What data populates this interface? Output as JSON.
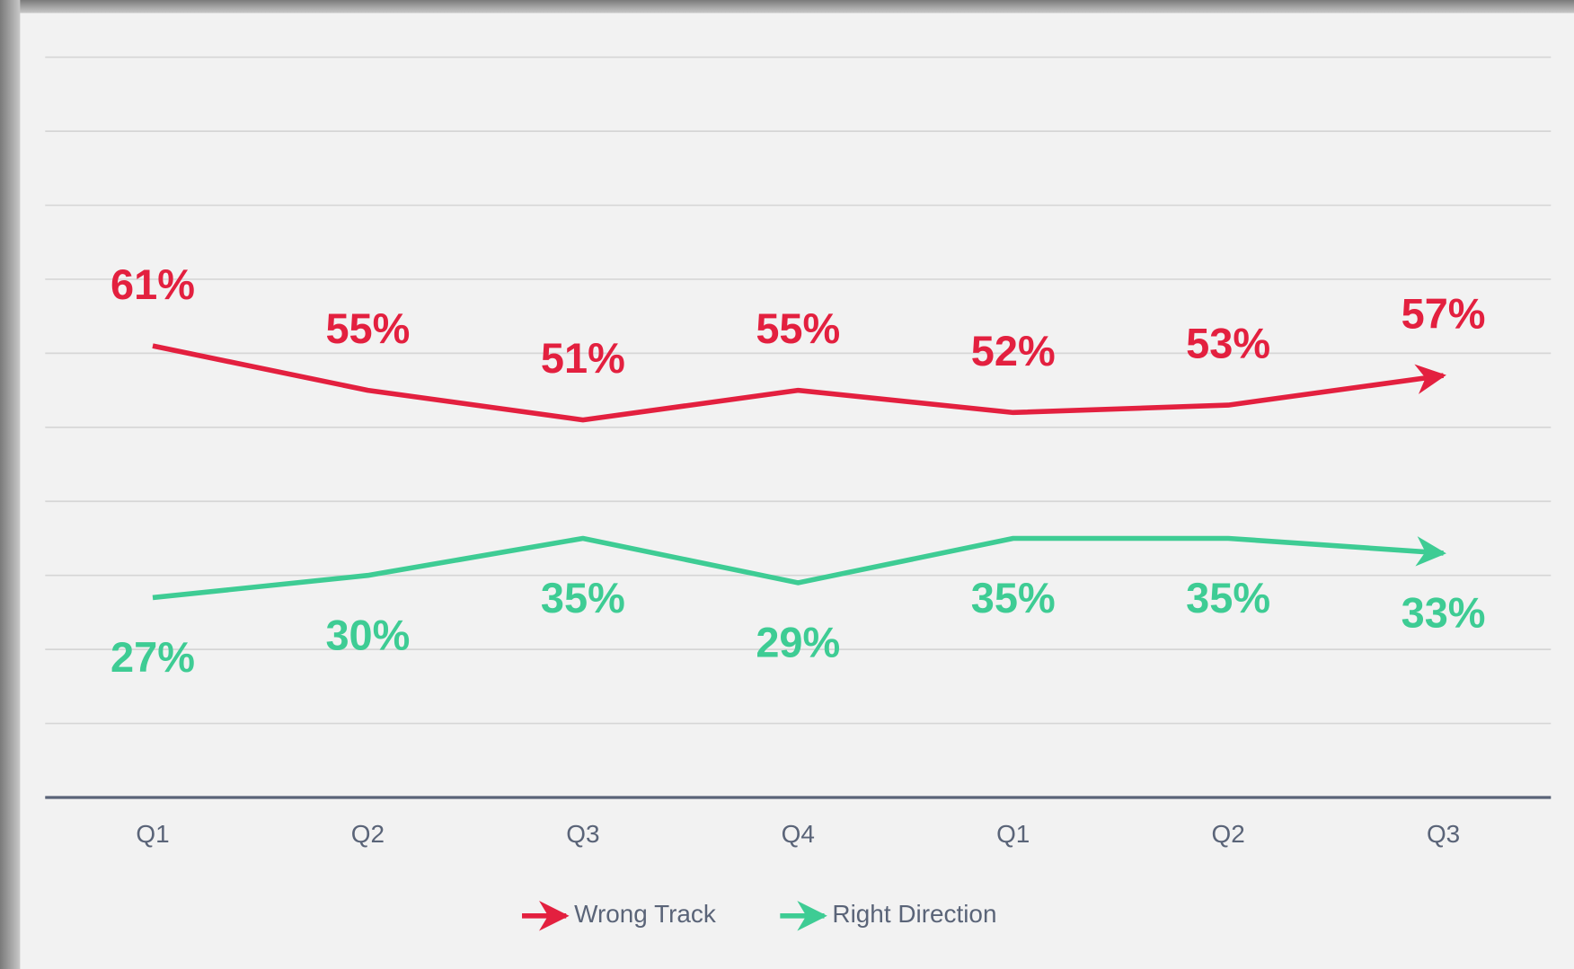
{
  "chart_data": {
    "type": "line",
    "categories": [
      "Q1",
      "Q2",
      "Q3",
      "Q4",
      "Q1",
      "Q2",
      "Q3"
    ],
    "series": [
      {
        "name": "Wrong Track",
        "color": "#e3203f",
        "values": [
          61,
          55,
          51,
          55,
          52,
          53,
          57
        ],
        "value_labels": [
          "61%",
          "55%",
          "51%",
          "55%",
          "52%",
          "53%",
          "57%"
        ]
      },
      {
        "name": "Right Direction",
        "color": "#3ecc94",
        "values": [
          27,
          30,
          35,
          29,
          35,
          35,
          33
        ],
        "value_labels": [
          "27%",
          "30%",
          "35%",
          "29%",
          "35%",
          "35%",
          "33%"
        ]
      }
    ],
    "ylim": [
      0,
      100
    ],
    "yticks": [
      0,
      10,
      20,
      30,
      40,
      50,
      60,
      70,
      80,
      90,
      100
    ],
    "grid": true,
    "legend": "bottom"
  }
}
